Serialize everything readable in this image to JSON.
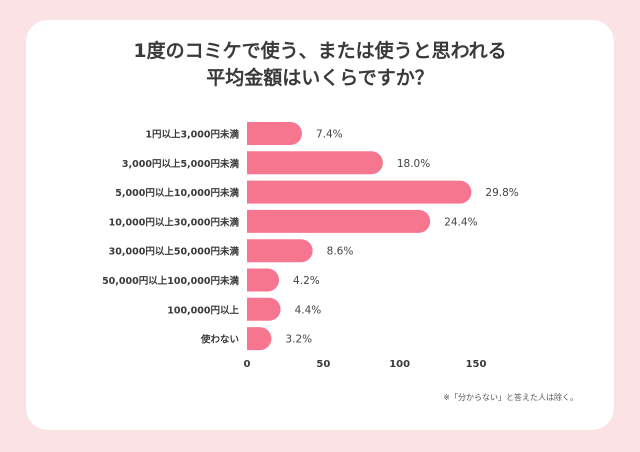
{
  "title_lines": [
    "1度のコミケで使う、または使うと思われる",
    "平均金額はいくらですか？"
  ],
  "footnote": "※「分からない」と答えた人は除く。",
  "colors": {
    "bar": "#f7768f",
    "background": "#fbe3e5",
    "card": "#ffffff"
  },
  "chart_data": {
    "type": "bar",
    "orientation": "horizontal",
    "categories": [
      "1円以上3,000円未満",
      "3,000円以上5,000円未満",
      "5,000円以上10,000円未満",
      "10,000円以上30,000円未満",
      "30,000円以上50,000円未満",
      "50,000円以上100,000円未満",
      "100,000円以上",
      "使わない"
    ],
    "values": [
      7.4,
      18.0,
      29.8,
      24.4,
      8.6,
      4.2,
      4.4,
      3.2
    ],
    "value_labels": [
      "7.4%",
      "18.0%",
      "29.8%",
      "24.4%",
      "8.6%",
      "4.2%",
      "4.4%",
      "3.2%"
    ],
    "counts": [
      36,
      89,
      147,
      120,
      43,
      21,
      22,
      16
    ],
    "x_ticks": [
      0,
      50,
      100,
      150
    ],
    "xlim": [
      0,
      150
    ],
    "grid": false,
    "legend": "none"
  }
}
